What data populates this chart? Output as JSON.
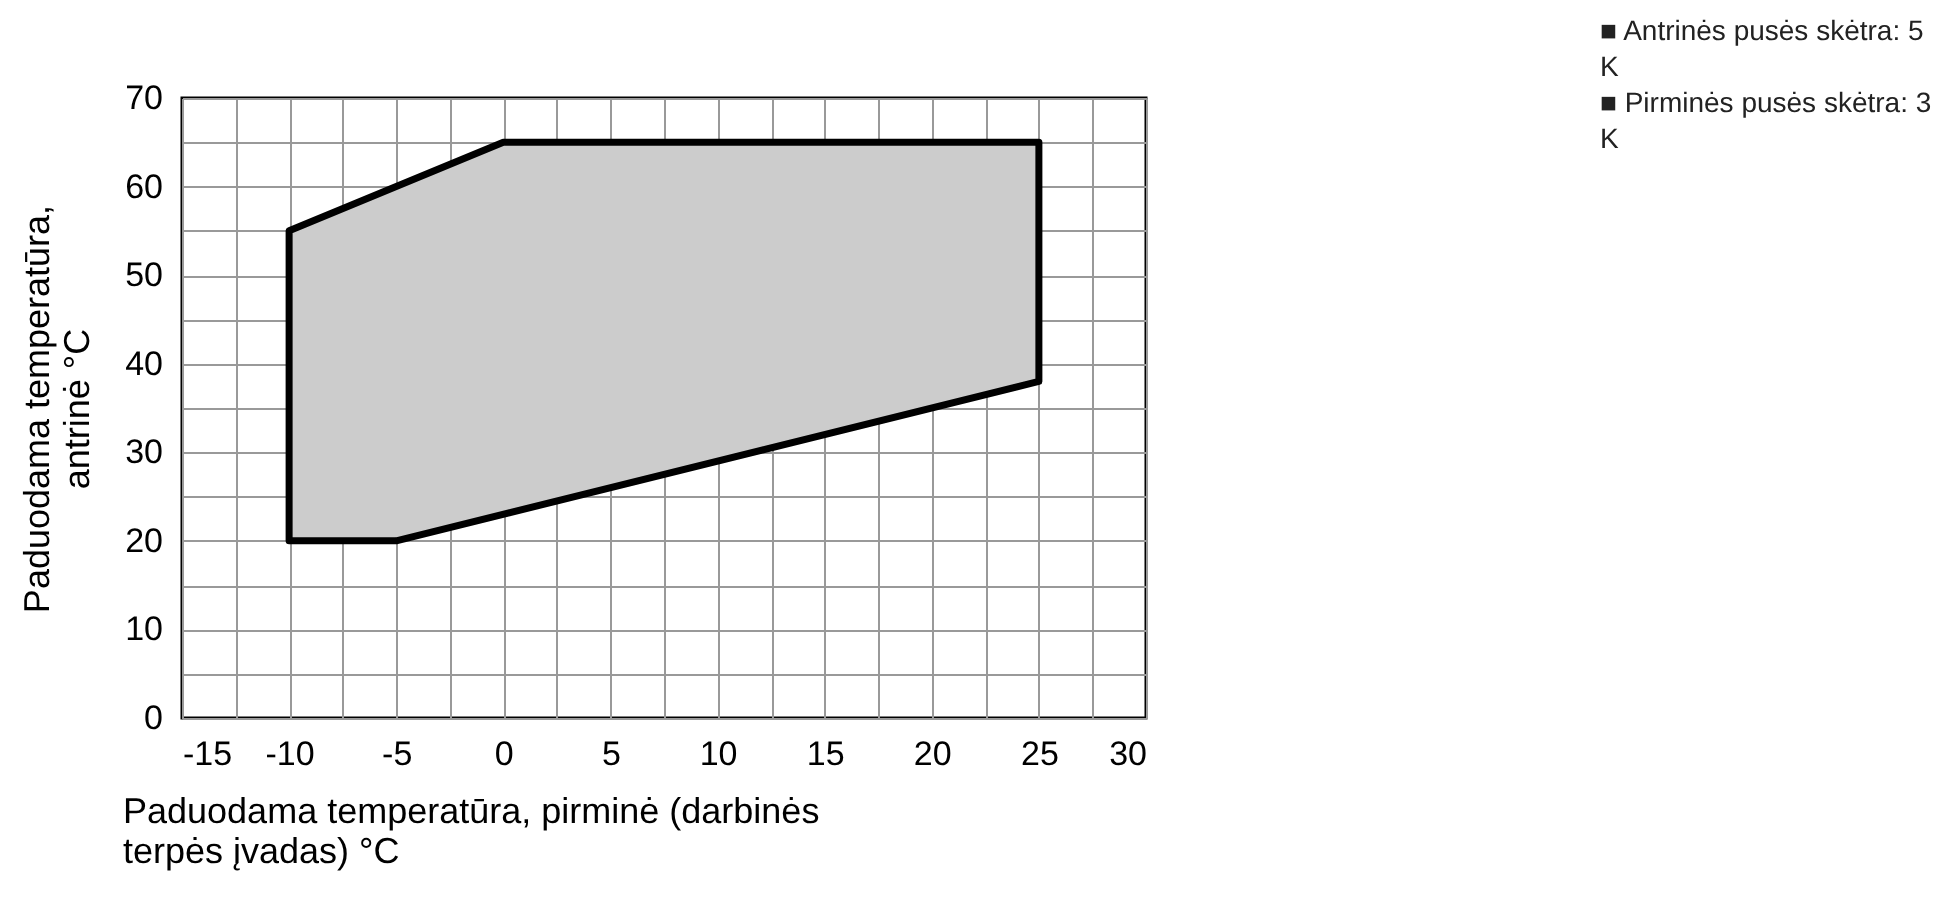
{
  "chart_data": {
    "type": "area",
    "xlabel": "Paduodama temperatūra, pirminė (darbinės terpės įvadas) °C",
    "ylabel": "Paduodama temperatūra, antrinė °C",
    "series": [
      {
        "color": "#cccccc",
        "x": [
          -10,
          -10,
          0,
          25,
          25,
          -5
        ],
        "values": [
          20,
          55,
          65,
          65,
          38,
          20
        ]
      }
    ],
    "xlim": [
      -15,
      30
    ],
    "ylim": [
      0,
      70
    ],
    "xticks": [
      -15,
      {
        "value": -12.5,
        "label": null
      },
      -10,
      {
        "value": -7.5,
        "label": null
      },
      -5,
      {
        "value": -2.5,
        "label": null
      },
      0,
      {
        "value": 2.5,
        "label": null
      },
      5,
      {
        "value": 7.5,
        "label": null
      },
      10,
      {
        "value": 12.5,
        "label": null
      },
      15,
      {
        "value": 17.5,
        "label": null
      },
      20,
      {
        "value": 22.5,
        "label": null
      },
      25,
      {
        "value": 27.5,
        "label": null
      },
      30
    ],
    "yticks": [
      0,
      {
        "value": 5,
        "label": null
      },
      10,
      {
        "value": 15,
        "label": null
      },
      20,
      {
        "value": 25,
        "label": null
      },
      30,
      {
        "value": 35,
        "label": null
      },
      40,
      {
        "value": 45,
        "label": null
      },
      50,
      {
        "value": 55,
        "label": null
      },
      60,
      {
        "value": 65,
        "label": null
      },
      70
    ],
    "grid": true,
    "annotations": [
      "■ Antrinės pusės skėtra: 5 K",
      "■ Pirminės pusės skėtra: 3 K"
    ]
  }
}
